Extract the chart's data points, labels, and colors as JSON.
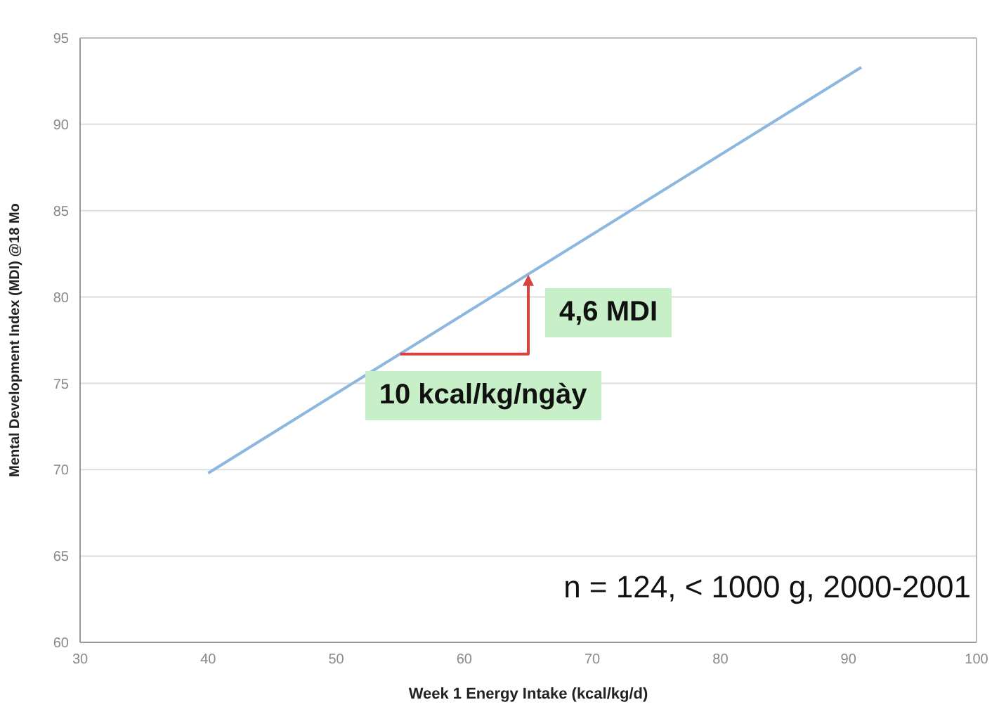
{
  "chart_data": {
    "type": "line",
    "xlabel": "Week 1 Energy Intake (kcal/kg/d)",
    "ylabel": "Mental Development Index (MDI) @18 Mo",
    "xlim": [
      30,
      100
    ],
    "xticks": [
      30,
      40,
      50,
      60,
      70,
      80,
      90,
      100
    ],
    "ylim": [
      60,
      95
    ],
    "yticks": [
      60,
      65,
      70,
      75,
      80,
      85,
      90,
      95
    ],
    "grid": "y",
    "series": [
      {
        "color": "#8cb8e0",
        "x": [
          40,
          91
        ],
        "values": [
          69.8,
          93.3
        ]
      }
    ],
    "annotations": [
      {
        "text": "4,6 MDI",
        "x": 65,
        "y": 81.3
      },
      {
        "text": "10 kcal/kg/ngày",
        "x": 55,
        "y": 76.7
      },
      "n = 124, < 1000 g, 2000-2001"
    ]
  }
}
